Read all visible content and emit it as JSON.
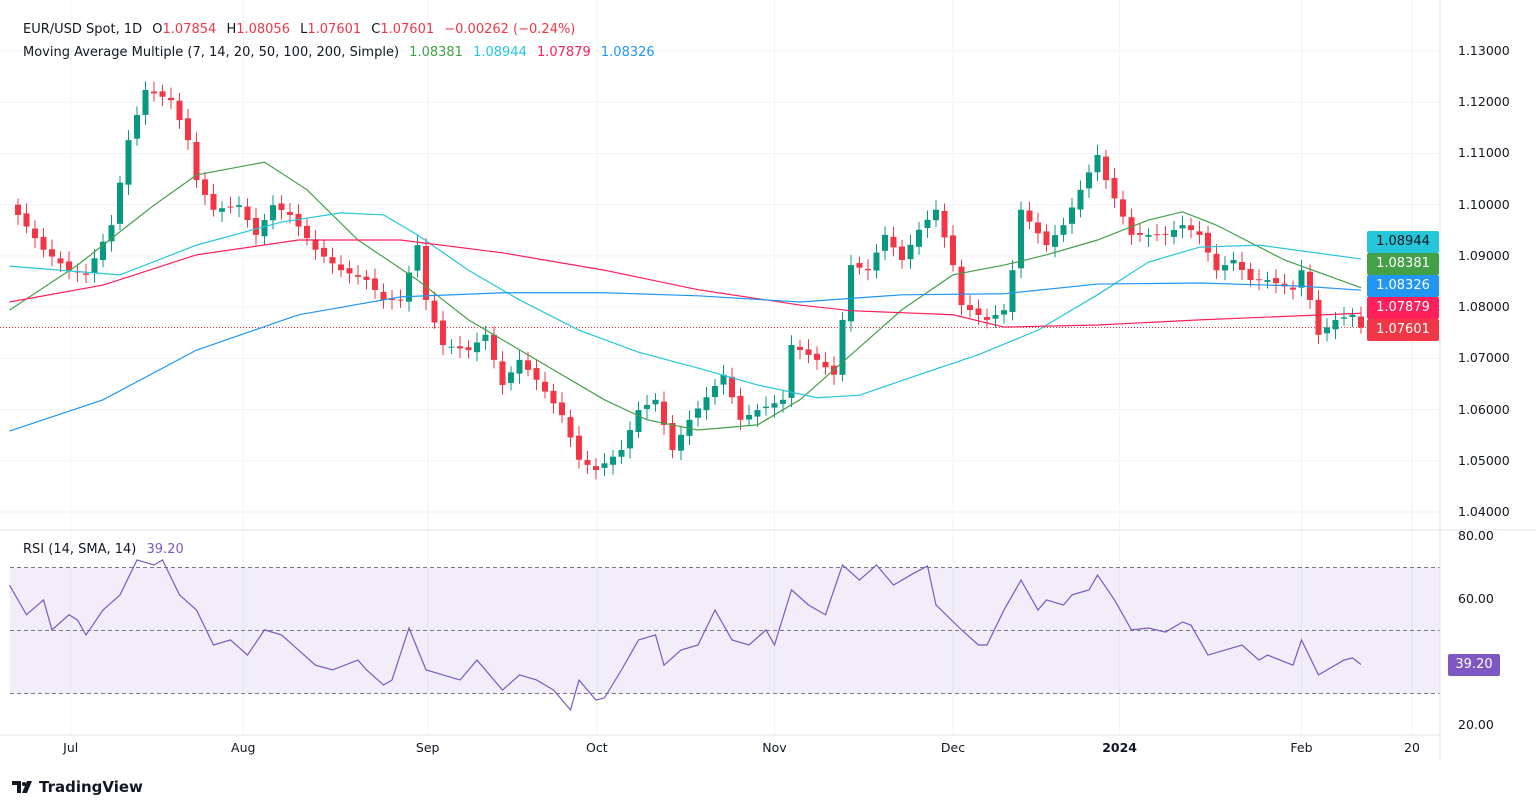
{
  "header": {
    "symbol": "EUR/USD Spot, 1D",
    "o_label": "O",
    "o": "1.07854",
    "h_label": "H",
    "h": "1.08056",
    "l_label": "L",
    "l": "1.07601",
    "c_label": "C",
    "c": "1.07601",
    "change": "−0.00262 (−0.24%)",
    "ma_title": "Moving Average Multiple (7, 14, 20, 50, 100, 200, Simple)",
    "ma_values": [
      "1.08381",
      "1.08944",
      "1.07879",
      "1.08326"
    ],
    "rsi_title": "RSI (14, SMA, 14)",
    "rsi_value": "39.20"
  },
  "badges": {
    "cyan": "1.08944",
    "green": "1.08381",
    "blue": "1.08326",
    "red": "1.07879",
    "last": "1.07601",
    "rsi": "39.20"
  },
  "colors": {
    "up": "#089981",
    "down": "#f23645",
    "ma_green": "#43a047",
    "ma_cyan": "#26c6da",
    "ma_red": "#ff1f5a",
    "ma_blue": "#2196f3",
    "rsi": "#7e57c2"
  },
  "footer": {
    "brand": "TradingView"
  },
  "chart_data": {
    "type": "candlestick",
    "title": "EUR/USD Spot, 1D",
    "ylim": [
      1.04,
      1.13
    ],
    "y_ticks": [
      "1.13000",
      "1.12000",
      "1.11000",
      "1.10000",
      "1.09000",
      "1.08000",
      "1.07000",
      "1.06000",
      "1.05000",
      "1.04000"
    ],
    "x_ticks": [
      {
        "label": "Jul",
        "day": 6.2
      },
      {
        "label": "Aug",
        "day": 26.5
      },
      {
        "label": "Sep",
        "day": 48.2
      },
      {
        "label": "Oct",
        "day": 68.1
      },
      {
        "label": "Nov",
        "day": 89
      },
      {
        "label": "Dec",
        "day": 110
      },
      {
        "label": "2024",
        "day": 129.6
      },
      {
        "label": "Feb",
        "day": 151
      },
      {
        "label": "20",
        "day": 164
      }
    ],
    "close_keypoints": [
      [
        0,
        1.098
      ],
      [
        3,
        1.0912
      ],
      [
        6,
        1.0872
      ],
      [
        8,
        1.0863
      ],
      [
        11,
        1.096
      ],
      [
        13,
        1.1126
      ],
      [
        15,
        1.1224
      ],
      [
        18,
        1.1204
      ],
      [
        20,
        1.1126
      ],
      [
        21,
        1.1048
      ],
      [
        23,
        1.099
      ],
      [
        26,
        1.0999
      ],
      [
        28,
        1.0941
      ],
      [
        30,
        1.0999
      ],
      [
        32,
        1.098
      ],
      [
        35,
        1.0912
      ],
      [
        38,
        1.0872
      ],
      [
        41,
        1.0853
      ],
      [
        43,
        1.0814
      ],
      [
        45,
        1.0814
      ],
      [
        47,
        1.0921
      ],
      [
        48,
        1.0814
      ],
      [
        50,
        1.0726
      ],
      [
        53,
        1.0716
      ],
      [
        55,
        1.0746
      ],
      [
        57,
        1.0648
      ],
      [
        59,
        1.0697
      ],
      [
        61,
        1.0658
      ],
      [
        64,
        1.0589
      ],
      [
        66,
        1.0502
      ],
      [
        68,
        1.0482
      ],
      [
        71,
        1.0521
      ],
      [
        73,
        1.0599
      ],
      [
        75,
        1.0619
      ],
      [
        77,
        1.0521
      ],
      [
        79,
        1.058
      ],
      [
        83,
        1.0668
      ],
      [
        85,
        1.058
      ],
      [
        87,
        1.0599
      ],
      [
        90,
        1.0619
      ],
      [
        91,
        1.0726
      ],
      [
        94,
        1.0697
      ],
      [
        96,
        1.0668
      ],
      [
        98,
        1.0882
      ],
      [
        100,
        1.0872
      ],
      [
        102,
        1.0941
      ],
      [
        104,
        1.0892
      ],
      [
        106,
        1.0951
      ],
      [
        108,
        1.099
      ],
      [
        110,
        1.0882
      ],
      [
        111,
        1.0804
      ],
      [
        114,
        1.0775
      ],
      [
        116,
        1.0794
      ],
      [
        117,
        1.0872
      ],
      [
        118,
        1.099
      ],
      [
        121,
        1.0921
      ],
      [
        123,
        1.096
      ],
      [
        125,
        1.1029
      ],
      [
        127,
        1.1097
      ],
      [
        128,
        1.1048
      ],
      [
        131,
        1.0941
      ],
      [
        133,
        1.0941
      ],
      [
        135,
        1.0941
      ],
      [
        137,
        1.096
      ],
      [
        139,
        1.0941
      ],
      [
        141,
        1.0872
      ],
      [
        143,
        1.0892
      ],
      [
        145,
        1.0853
      ],
      [
        147,
        1.0853
      ],
      [
        150,
        1.0834
      ],
      [
        151,
        1.0872
      ],
      [
        152,
        1.0814
      ],
      [
        153,
        1.0746
      ],
      [
        155,
        1.0775
      ],
      [
        157,
        1.0785
      ],
      [
        158,
        1.076
      ]
    ],
    "last_price": 1.07601,
    "moving_averages": [
      {
        "name": "MA20",
        "color": "#43a047",
        "points": [
          [
            -1,
            1.0794
          ],
          [
            7,
            1.0882
          ],
          [
            16,
            1.0999
          ],
          [
            21,
            1.1058
          ],
          [
            29,
            1.1083
          ],
          [
            34,
            1.1029
          ],
          [
            40,
            1.0931
          ],
          [
            47,
            1.0853
          ],
          [
            53,
            1.0775
          ],
          [
            61,
            1.0697
          ],
          [
            69,
            1.0619
          ],
          [
            74,
            1.058
          ],
          [
            80,
            1.056
          ],
          [
            87,
            1.057
          ],
          [
            92,
            1.0619
          ],
          [
            98,
            1.0707
          ],
          [
            104,
            1.0795
          ],
          [
            110,
            1.0863
          ],
          [
            116,
            1.0882
          ],
          [
            121,
            1.0902
          ],
          [
            127,
            1.0931
          ],
          [
            133,
            1.097
          ],
          [
            137,
            1.0986
          ],
          [
            141,
            1.096
          ],
          [
            149,
            1.0892
          ],
          [
            158,
            1.0838
          ]
        ]
      },
      {
        "name": "MA50",
        "color": "#26c6da",
        "points": [
          [
            -1,
            1.088
          ],
          [
            5,
            1.0872
          ],
          [
            12,
            1.0863
          ],
          [
            21,
            1.0921
          ],
          [
            31,
            1.0966
          ],
          [
            38,
            1.0984
          ],
          [
            43,
            1.098
          ],
          [
            47,
            1.0941
          ],
          [
            53,
            1.0872
          ],
          [
            59,
            1.0814
          ],
          [
            66,
            1.0755
          ],
          [
            73,
            1.0712
          ],
          [
            80,
            1.0681
          ],
          [
            87,
            1.0648
          ],
          [
            94,
            1.0623
          ],
          [
            99,
            1.0628
          ],
          [
            106,
            1.0668
          ],
          [
            113,
            1.0707
          ],
          [
            120,
            1.0755
          ],
          [
            127,
            1.0824
          ],
          [
            133,
            1.0888
          ],
          [
            139,
            1.0917
          ],
          [
            146,
            1.0921
          ],
          [
            158,
            1.0894
          ]
        ]
      },
      {
        "name": "MA100",
        "color": "#ff1f5a",
        "points": [
          [
            -1,
            1.081
          ],
          [
            10,
            1.0843
          ],
          [
            21,
            1.0902
          ],
          [
            33,
            1.0931
          ],
          [
            45,
            1.0931
          ],
          [
            57,
            1.0906
          ],
          [
            69,
            1.0872
          ],
          [
            80,
            1.0834
          ],
          [
            92,
            1.0804
          ],
          [
            98,
            1.0793
          ],
          [
            110,
            1.0785
          ],
          [
            116,
            1.0761
          ],
          [
            127,
            1.0765
          ],
          [
            139,
            1.0775
          ],
          [
            158,
            1.0788
          ]
        ]
      },
      {
        "name": "MA200",
        "color": "#2196f3",
        "points": [
          [
            -1,
            1.0558
          ],
          [
            10,
            1.0619
          ],
          [
            21,
            1.0716
          ],
          [
            33,
            1.0785
          ],
          [
            45,
            1.082
          ],
          [
            57,
            1.0828
          ],
          [
            69,
            1.0828
          ],
          [
            80,
            1.0822
          ],
          [
            92,
            1.081
          ],
          [
            104,
            1.0824
          ],
          [
            116,
            1.0826
          ],
          [
            127,
            1.0845
          ],
          [
            139,
            1.0847
          ],
          [
            151,
            1.0841
          ],
          [
            158,
            1.0833
          ]
        ]
      }
    ],
    "rsi": {
      "ylim": [
        20,
        80
      ],
      "y_ticks": [
        "80.00",
        "60.00",
        "20.00"
      ],
      "bands": [
        70,
        50,
        30
      ],
      "days": [
        -1,
        1,
        3,
        4,
        6,
        7,
        8,
        10,
        12,
        14,
        16,
        17,
        19,
        21,
        23,
        25,
        27,
        29,
        31,
        33,
        35,
        37,
        40,
        41,
        43,
        44,
        46,
        48,
        50,
        52,
        54,
        57,
        59,
        61,
        63,
        65,
        66,
        68,
        69,
        71,
        73,
        75,
        76,
        78,
        80,
        82,
        84,
        86,
        88,
        89,
        91,
        93,
        95,
        97,
        99,
        101,
        103,
        105,
        107,
        108,
        111,
        113,
        114,
        116,
        118,
        120,
        121,
        123,
        124,
        126,
        127,
        129,
        131,
        133,
        135,
        137,
        138,
        140,
        142,
        144,
        146,
        147,
        150,
        151,
        153,
        156,
        157,
        158
      ],
      "values": [
        64.4,
        55,
        59.7,
        50.2,
        55,
        53.3,
        48.6,
        56.5,
        61.3,
        72.4,
        70.8,
        72.4,
        61.3,
        56.5,
        45.4,
        47,
        42.2,
        50.2,
        48.6,
        43.8,
        39,
        37.5,
        40.6,
        37.5,
        32.7,
        34.3,
        50.8,
        37.5,
        35.9,
        34.3,
        40.6,
        31.1,
        35.9,
        34.3,
        31.1,
        24.8,
        34.3,
        27.9,
        28.6,
        37.5,
        47,
        48.6,
        39,
        43.8,
        45.4,
        56.5,
        47,
        45.4,
        50.2,
        45.4,
        62.9,
        58.1,
        55,
        70.8,
        66,
        70.8,
        64.4,
        67.6,
        70.5,
        58.1,
        50.2,
        45.4,
        45.4,
        56.5,
        66,
        56.5,
        59.7,
        58.1,
        61.3,
        62.9,
        67.6,
        59.7,
        50.2,
        50.8,
        49.5,
        52.7,
        51.7,
        42.2,
        43.8,
        45.4,
        40.6,
        42.2,
        39,
        47,
        35.9,
        40.6,
        41.3,
        39.2
      ]
    }
  }
}
